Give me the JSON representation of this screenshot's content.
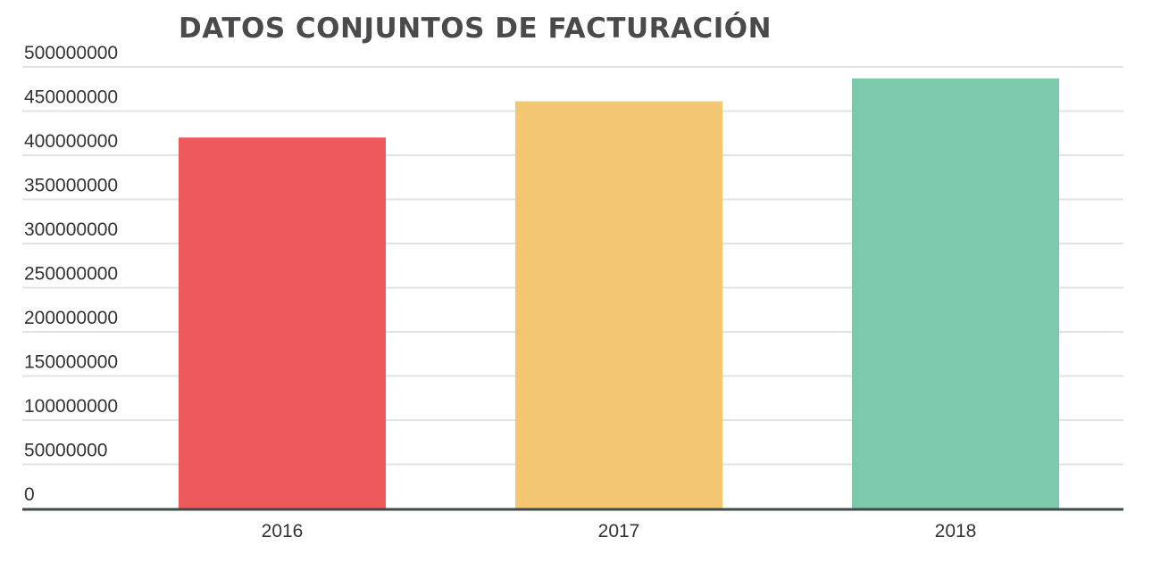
{
  "chart_data": {
    "type": "bar",
    "title": "DATOS CONJUNTOS DE FACTURACIÓN",
    "xlabel": "",
    "ylabel": "",
    "categories": [
      "2016",
      "2017",
      "2018"
    ],
    "values": [
      420000000,
      461000000,
      487000000
    ],
    "colors": [
      "#ee5a5c",
      "#f3c671",
      "#7ccaab"
    ],
    "ylim": [
      0,
      500000000
    ],
    "yticks": [
      0,
      50000000,
      100000000,
      150000000,
      200000000,
      250000000,
      300000000,
      350000000,
      400000000,
      450000000,
      500000000
    ],
    "ytick_labels": [
      "0",
      "50000000",
      "100000000",
      "150000000",
      "200000000",
      "250000000",
      "300000000",
      "350000000",
      "400000000",
      "450000000",
      "500000000"
    ],
    "grid": true,
    "legend": "none"
  }
}
